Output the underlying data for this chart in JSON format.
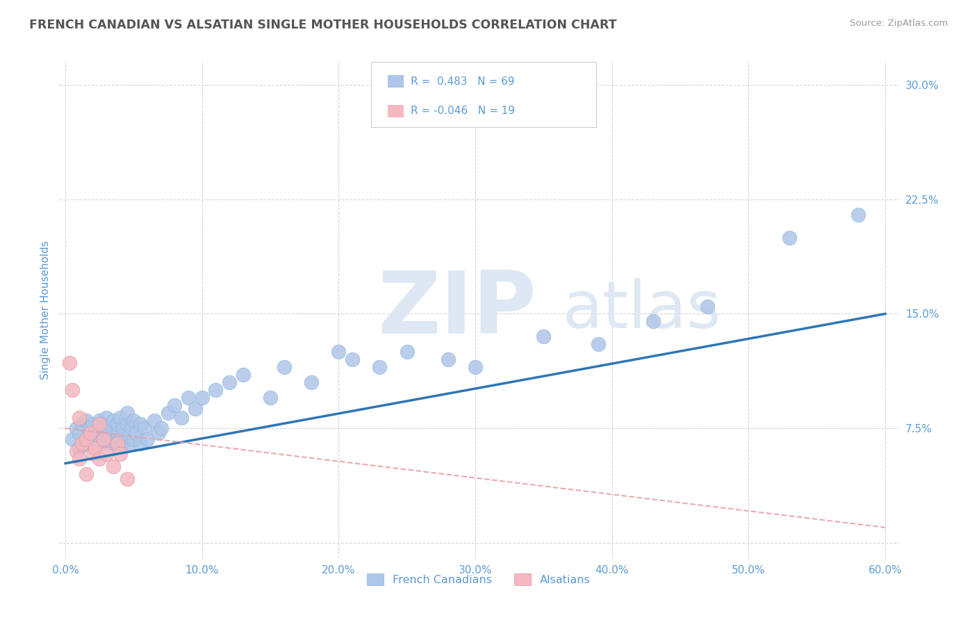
{
  "title": "FRENCH CANADIAN VS ALSATIAN SINGLE MOTHER HOUSEHOLDS CORRELATION CHART",
  "source_text": "Source: ZipAtlas.com",
  "ylabel": "Single Mother Households",
  "r_french": 0.483,
  "n_french": 69,
  "r_alsatian": -0.046,
  "n_alsatian": 19,
  "xlim": [
    -0.005,
    0.61
  ],
  "ylim": [
    -0.01,
    0.315
  ],
  "xticks": [
    0.0,
    0.1,
    0.2,
    0.3,
    0.4,
    0.5,
    0.6
  ],
  "xticklabels": [
    "0.0%",
    "10.0%",
    "20.0%",
    "30.0%",
    "40.0%",
    "50.0%",
    "60.0%"
  ],
  "yticks": [
    0.0,
    0.075,
    0.15,
    0.225,
    0.3
  ],
  "yticklabels": [
    "",
    "7.5%",
    "15.0%",
    "22.5%",
    "30.0%"
  ],
  "background_color": "#ffffff",
  "grid_color": "#cccccc",
  "title_color": "#555555",
  "axis_color": "#5b9bd5",
  "french_dot_color": "#aec6e8",
  "alsatian_dot_color": "#f4b8c1",
  "french_line_color": "#2e75b6",
  "alsatian_line_color": "#e8a0aa",
  "watermark_color": "#dde8f4",
  "watermark_text_ZIP": "ZIP",
  "watermark_text_atlas": "atlas",
  "french_x": [
    0.005,
    0.008,
    0.01,
    0.01,
    0.012,
    0.015,
    0.015,
    0.018,
    0.018,
    0.02,
    0.02,
    0.022,
    0.022,
    0.025,
    0.025,
    0.025,
    0.028,
    0.028,
    0.03,
    0.03,
    0.03,
    0.032,
    0.032,
    0.035,
    0.035,
    0.038,
    0.038,
    0.04,
    0.04,
    0.042,
    0.042,
    0.045,
    0.045,
    0.048,
    0.048,
    0.05,
    0.05,
    0.052,
    0.055,
    0.055,
    0.058,
    0.06,
    0.065,
    0.068,
    0.07,
    0.075,
    0.08,
    0.085,
    0.09,
    0.095,
    0.1,
    0.11,
    0.12,
    0.13,
    0.15,
    0.16,
    0.18,
    0.2,
    0.21,
    0.23,
    0.25,
    0.28,
    0.3,
    0.35,
    0.39,
    0.43,
    0.47,
    0.53,
    0.58
  ],
  "french_y": [
    0.068,
    0.075,
    0.072,
    0.062,
    0.078,
    0.065,
    0.08,
    0.07,
    0.075,
    0.065,
    0.078,
    0.072,
    0.068,
    0.075,
    0.08,
    0.065,
    0.07,
    0.078,
    0.065,
    0.072,
    0.082,
    0.068,
    0.075,
    0.065,
    0.08,
    0.072,
    0.078,
    0.068,
    0.082,
    0.075,
    0.065,
    0.078,
    0.085,
    0.065,
    0.075,
    0.068,
    0.08,
    0.072,
    0.078,
    0.065,
    0.075,
    0.068,
    0.08,
    0.072,
    0.075,
    0.085,
    0.09,
    0.082,
    0.095,
    0.088,
    0.095,
    0.1,
    0.105,
    0.11,
    0.095,
    0.115,
    0.105,
    0.125,
    0.12,
    0.115,
    0.125,
    0.12,
    0.115,
    0.135,
    0.13,
    0.145,
    0.155,
    0.2,
    0.215
  ],
  "alsatian_x": [
    0.003,
    0.005,
    0.008,
    0.01,
    0.01,
    0.012,
    0.015,
    0.015,
    0.018,
    0.02,
    0.022,
    0.025,
    0.025,
    0.028,
    0.03,
    0.035,
    0.038,
    0.04,
    0.045
  ],
  "alsatian_y": [
    0.118,
    0.1,
    0.06,
    0.082,
    0.055,
    0.065,
    0.068,
    0.045,
    0.072,
    0.058,
    0.062,
    0.078,
    0.055,
    0.068,
    0.058,
    0.05,
    0.065,
    0.058,
    0.042
  ],
  "french_trend_x0": 0.0,
  "french_trend_y0": 0.052,
  "french_trend_x1": 0.6,
  "french_trend_y1": 0.15,
  "alsatian_trend_x0": 0.0,
  "alsatian_trend_y0": 0.075,
  "alsatian_trend_x1": 0.6,
  "alsatian_trend_y1": 0.01
}
